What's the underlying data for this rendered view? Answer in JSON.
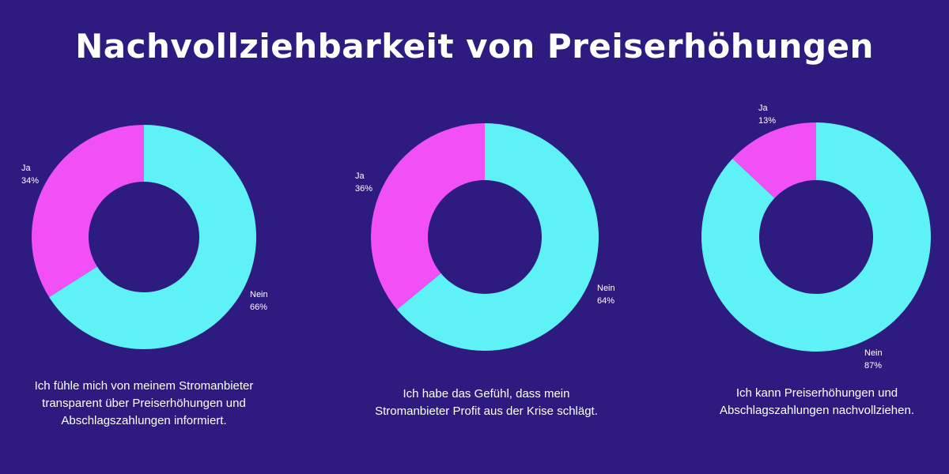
{
  "title": "Nachvollziehbarkeit von Preiserhöhungen",
  "colors": {
    "background": "#2d1b80",
    "nein": "#5ef2f7",
    "ja": "#f050f5"
  },
  "chart_data": [
    {
      "type": "pie",
      "donut": true,
      "categories": [
        "Nein",
        "Ja"
      ],
      "values": [
        66,
        34
      ],
      "labels": [
        "66%",
        "34%"
      ],
      "caption": "Ich fühle mich von meinem Stromanbieter transparent über Preiserhöhungen und Abschlagszahlungen informiert."
    },
    {
      "type": "pie",
      "donut": true,
      "categories": [
        "Nein",
        "Ja"
      ],
      "values": [
        64,
        36
      ],
      "labels": [
        "64%",
        "36%"
      ],
      "caption": "Ich habe das Gefühl, dass mein Stromanbieter Profit aus der Krise schlägt."
    },
    {
      "type": "pie",
      "donut": true,
      "categories": [
        "Nein",
        "Ja"
      ],
      "values": [
        87,
        13
      ],
      "labels": [
        "87%",
        "13%"
      ],
      "caption": "Ich kann Preiserhöhungen und Abschlagszahlungen nachvollziehen."
    }
  ]
}
